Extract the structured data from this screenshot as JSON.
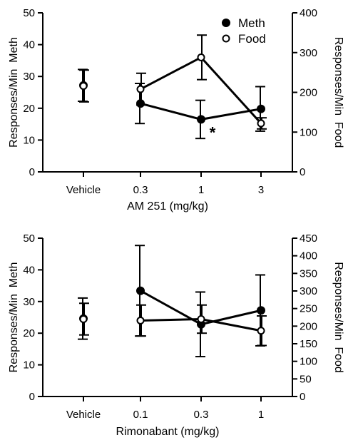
{
  "chart_data": [
    {
      "type": "line",
      "title": "",
      "xlabel": "AM 251 (mg/kg)",
      "ylabel_left": "Responses/Min  Meth",
      "ylabel_right": "Responses/Min  Food",
      "categories": [
        "Vehicle",
        "0.3",
        "1",
        "3"
      ],
      "ylim_left": [
        0,
        50
      ],
      "yticks_left": [
        0,
        10,
        20,
        30,
        40,
        50
      ],
      "ylim_right": [
        0,
        400
      ],
      "yticks_right": [
        0,
        100,
        200,
        300,
        400
      ],
      "legend": {
        "position": "top-right",
        "entries": [
          {
            "label": "Meth",
            "marker": "filled"
          },
          {
            "label": "Food",
            "marker": "open"
          }
        ]
      },
      "annotations": [
        {
          "text": "*",
          "category": "1",
          "series": "Meth"
        }
      ],
      "series": [
        {
          "name": "Meth",
          "axis": "left",
          "marker": "filled",
          "connect_vehicle": false,
          "values": [
            27.2,
            21.5,
            16.5,
            19.8
          ],
          "error": [
            5.0,
            6.3,
            6.0,
            7.0
          ]
        },
        {
          "name": "Food",
          "axis": "right",
          "marker": "open",
          "connect_vehicle": false,
          "values": [
            216,
            208,
            288,
            122
          ],
          "error": [
            40,
            40,
            56,
            14
          ]
        }
      ]
    },
    {
      "type": "line",
      "title": "",
      "xlabel": "Rimonabant (mg/kg)",
      "ylabel_left": "Responses/Min  Meth",
      "ylabel_right": "Responses/Min  Food",
      "categories": [
        "Vehicle",
        "0.1",
        "0.3",
        "1"
      ],
      "ylim_left": [
        0,
        50
      ],
      "yticks_left": [
        0,
        10,
        20,
        30,
        40,
        50
      ],
      "ylim_right": [
        0,
        450
      ],
      "yticks_right": [
        0,
        50,
        100,
        150,
        200,
        250,
        300,
        350,
        400,
        450
      ],
      "legend": null,
      "annotations": [],
      "series": [
        {
          "name": "Meth",
          "axis": "left",
          "marker": "filled",
          "connect_vehicle": false,
          "values": [
            24.6,
            33.4,
            22.8,
            27.2
          ],
          "error": [
            6.5,
            14.3,
            10.2,
            11.2
          ]
        },
        {
          "name": "Food",
          "axis": "right",
          "marker": "open",
          "connect_vehicle": false,
          "values": [
            220,
            216,
            220,
            187
          ],
          "error": [
            45,
            44,
            40,
            42
          ]
        }
      ]
    }
  ]
}
